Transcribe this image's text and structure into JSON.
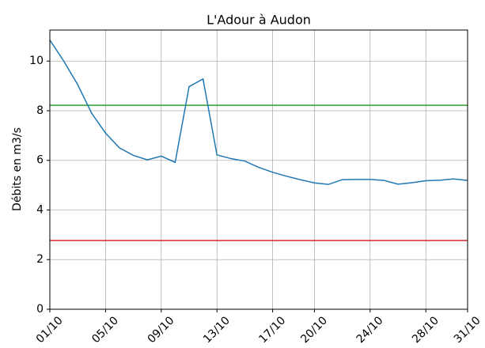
{
  "chart_data": {
    "type": "line",
    "title": "L'Adour à Audon",
    "y_label": "Débits en m3/s",
    "categories": [
      "01/10",
      null,
      null,
      null,
      "05/10",
      null,
      null,
      null,
      "09/10",
      null,
      null,
      null,
      "13/10",
      null,
      null,
      null,
      "17/10",
      null,
      null,
      "20/10",
      null,
      null,
      null,
      "24/10",
      null,
      null,
      null,
      "28/10",
      null,
      null,
      "31/10"
    ],
    "series": [
      {
        "color": "#1f77b4",
        "values": [
          10.85,
          10.0,
          9.05,
          7.9,
          7.1,
          6.5,
          6.2,
          6.02,
          6.17,
          5.92,
          8.97,
          9.28,
          6.22,
          6.07,
          5.97,
          5.72,
          5.52,
          5.36,
          5.22,
          5.09,
          5.03,
          5.22,
          5.23,
          5.23,
          5.19,
          5.04,
          5.1,
          5.18,
          5.2,
          5.25,
          5.19
        ]
      }
    ],
    "hlines": [
      {
        "value": 8.22,
        "color": "#2ca02c"
      },
      {
        "value": 2.77,
        "color": "#d62728"
      }
    ],
    "ylim": [
      0,
      11.25
    ],
    "yticks": [
      0,
      2,
      4,
      6,
      8,
      10
    ],
    "grid": true
  }
}
